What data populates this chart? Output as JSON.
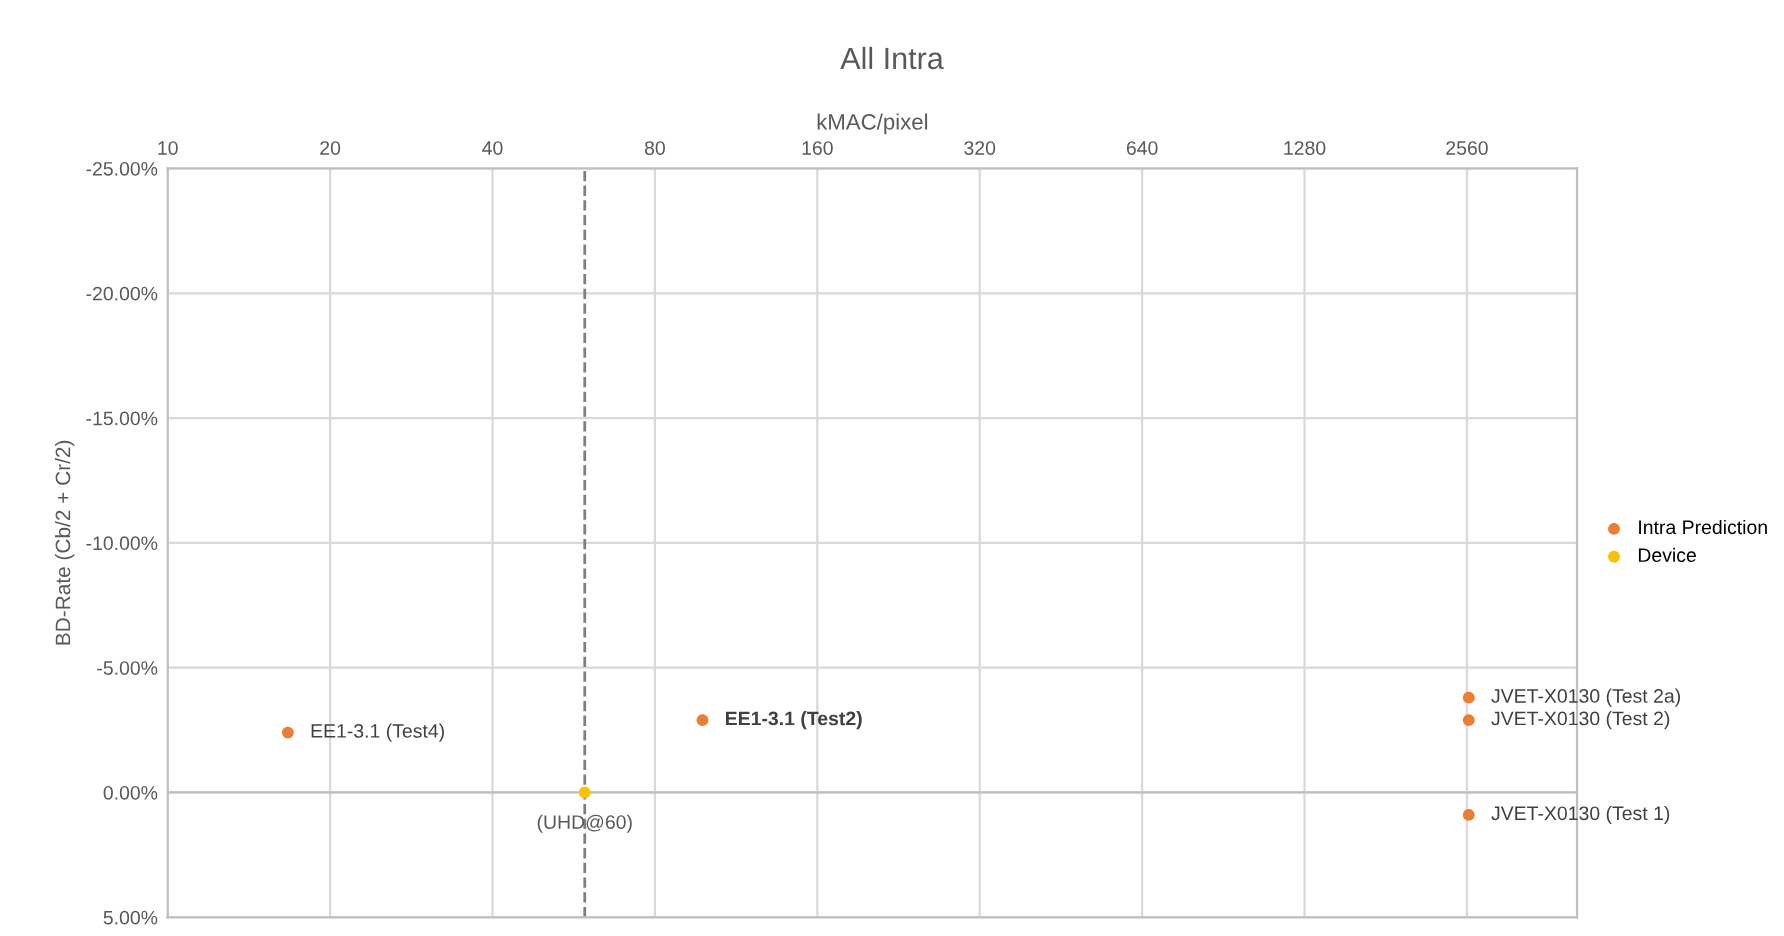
{
  "chart_data": {
    "type": "scatter",
    "title": "All Intra",
    "xlabel": "kMAC/pixel",
    "ylabel": "BD-Rate (Cb/2 + Cr/2)",
    "log": "x",
    "grid": true,
    "legend": "right",
    "marker": "circle",
    "xlim": [
      10,
      4096
    ],
    "xticks": [
      10,
      20,
      40,
      80,
      160,
      320,
      640,
      1280,
      2560
    ],
    "ylim": [
      5,
      -25
    ],
    "yticks": [
      {
        "value": -25,
        "label": "-25.00%"
      },
      {
        "value": -20,
        "label": "-20.00%"
      },
      {
        "value": -15,
        "label": "-15.00%"
      },
      {
        "value": -10,
        "label": "-10.00%"
      },
      {
        "value": -5,
        "label": "-5.00%"
      },
      {
        "value": 0,
        "label": "0.00%"
      },
      {
        "value": 5,
        "label": "5.00%"
      }
    ],
    "series": [
      {
        "name": "Intra Prediction",
        "color": "#ed7d31",
        "x": [
          16.7,
          98,
          2580,
          2580,
          2580
        ],
        "values": [
          -2.4,
          -2.9,
          -3.8,
          -2.9,
          0.9
        ]
      },
      {
        "name": "Device",
        "color": "#ffc000",
        "x": [
          59.3
        ],
        "values": [
          0
        ]
      }
    ],
    "ref_lines": [
      {
        "axis": "x",
        "value": 59.3,
        "color": "#7f7f7f",
        "line_style": "dashed"
      }
    ],
    "annotations": [
      {
        "text": "EE1-3.1 (Test4)",
        "x": 16.7,
        "y": -2.4
      },
      {
        "text": "EE1-3.1 (Test2)",
        "x": 98,
        "y": -2.9
      },
      {
        "text": "JVET-X0130 (Test 2a)",
        "x": 2580,
        "y": -3.8
      },
      {
        "text": "JVET-X0130 (Test 2)",
        "x": 2580,
        "y": -2.9
      },
      {
        "text": "JVET-X0130 (Test 1)",
        "x": 2580,
        "y": 0.9
      },
      {
        "text": "(UHD@60)",
        "x": 59.3,
        "y": 0
      }
    ]
  }
}
